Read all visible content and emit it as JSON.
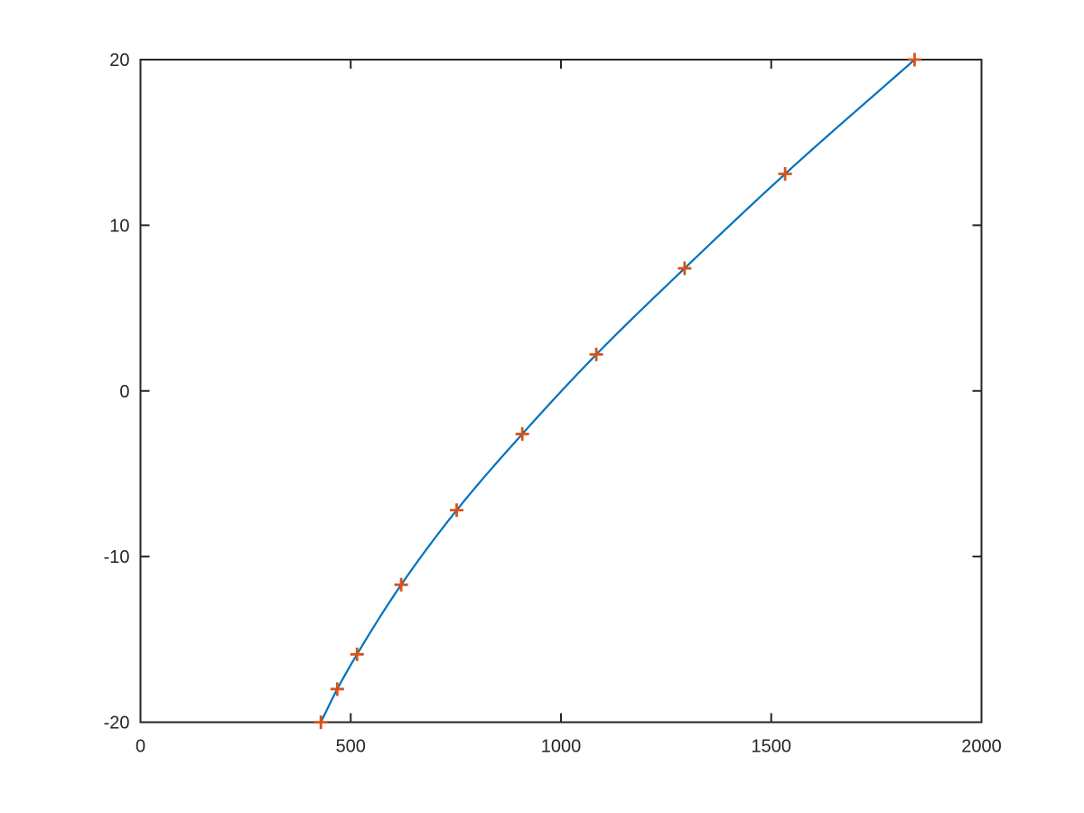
{
  "figure": {
    "background": "#ffffff",
    "axes_color": "#262626",
    "tick_label_color": "#262626"
  },
  "chart_data": {
    "type": "line",
    "title": "",
    "xlabel": "",
    "ylabel": "",
    "xlim": [
      0,
      2000
    ],
    "ylim": [
      -20,
      20
    ],
    "grid": false,
    "box": true,
    "tick_direction": "in",
    "legend_position": "none",
    "x_ticks": {
      "values": [
        0,
        500,
        1000,
        1500,
        2000
      ],
      "labels": [
        "0",
        "500",
        "1000",
        "1500",
        "2000"
      ]
    },
    "y_ticks": {
      "values": [
        -20,
        -10,
        0,
        10,
        20
      ],
      "labels": [
        "-20",
        "-10",
        "0",
        "10",
        "20"
      ]
    },
    "series": [
      {
        "name": "fitted-curve",
        "type": "line",
        "color": "#0072BD",
        "line_width": 2.2,
        "smooth": true,
        "x": [
          429,
          468,
          515,
          620,
          752,
          908,
          1084,
          1294,
          1533,
          1841
        ],
        "y": [
          -20,
          -18,
          -15.9,
          -11.7,
          -7.2,
          -2.6,
          2.2,
          7.4,
          13.1,
          20
        ]
      },
      {
        "name": "data-points",
        "type": "scatter",
        "marker": "plus",
        "color": "#D95319",
        "marker_size": 15,
        "marker_line_width": 2.8,
        "x": [
          429,
          468,
          515,
          620,
          752,
          908,
          1084,
          1294,
          1533,
          1841
        ],
        "y": [
          -20,
          -18,
          -15.9,
          -11.7,
          -7.2,
          -2.6,
          2.2,
          7.4,
          13.1,
          20
        ]
      }
    ]
  }
}
